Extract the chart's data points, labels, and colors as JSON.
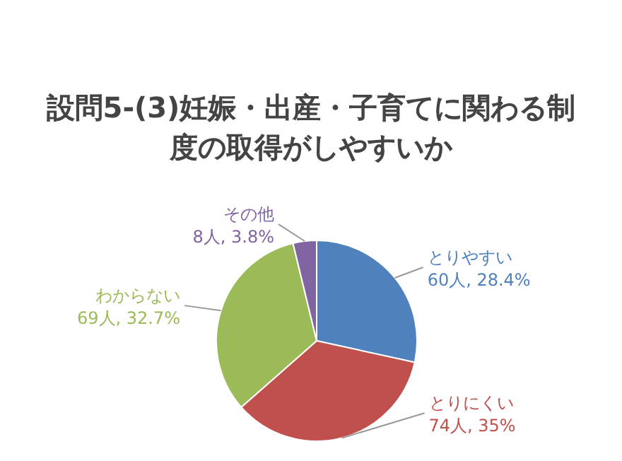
{
  "chart_data": {
    "type": "pie",
    "title": "設問5-(3)妊娠・出産・子育てに関わる制度の取得がしやすいか",
    "categories": [
      "とりやすい",
      "とりにくい",
      "わからない",
      "その他"
    ],
    "values": [
      60,
      74,
      69,
      8
    ],
    "value_labels": [
      "60人, 28.4%",
      "74人, 35%",
      "69人, 32.7%",
      "8人, 3.8%"
    ],
    "colors": [
      "#4f81bd",
      "#c0504d",
      "#9bbb59",
      "#8064a2"
    ],
    "legend": false
  }
}
